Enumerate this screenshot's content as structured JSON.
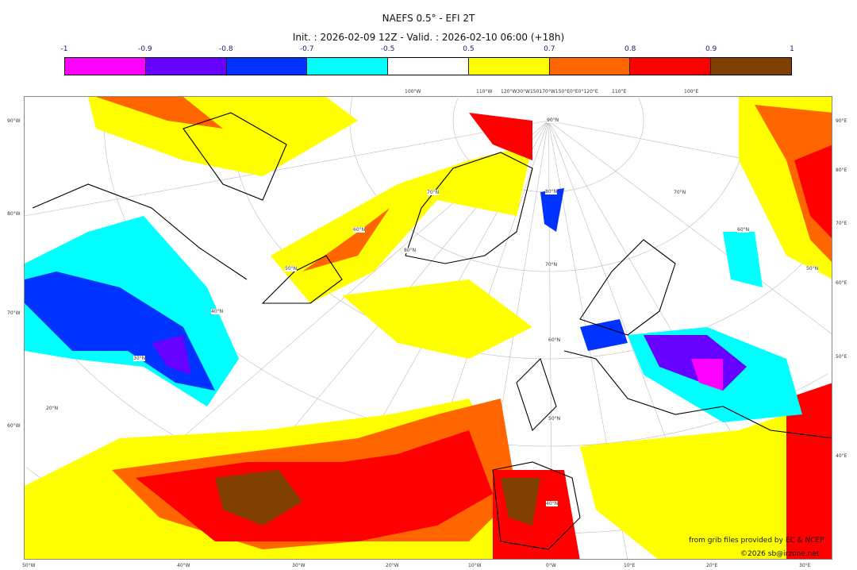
{
  "title": "NAEFS 0.5° - EFI 2T",
  "subtitle": "Init. : 2026-02-09 12Z - Valid. : 2026-02-10 06:00 (+18h)",
  "colorbar": {
    "ticks": [
      "-1",
      "-0.9",
      "-0.8",
      "-0.7",
      "-0.5",
      "0.5",
      "0.7",
      "0.8",
      "0.9",
      "1"
    ],
    "colors": [
      "#ff00ff",
      "#6600ff",
      "#0033ff",
      "#00ffff",
      "#ffffff",
      "#ffff00",
      "#ff6600",
      "#ff0000",
      "#7f3f00"
    ]
  },
  "map": {
    "left_labels": [
      "90°W",
      "80°W",
      "70°W",
      "60°W"
    ],
    "right_labels": [
      "90°E",
      "80°E",
      "70°E",
      "60°E",
      "50°E",
      "40°E"
    ],
    "bottom_labels": [
      "50°W",
      "40°W",
      "30°W",
      "20°W",
      "10°W",
      "0°W",
      "10°E",
      "20°E",
      "30°E"
    ],
    "top_labels": [
      "100°W",
      "110°W",
      "120°W30°W150170°W150°E0°E0°120°E",
      "110°E",
      "100°E"
    ],
    "lat_labels": [
      "90°N",
      "80°N",
      "80°N",
      "70°N",
      "70°N",
      "70°N",
      "60°N",
      "60°N",
      "60°N",
      "50°N",
      "50°N",
      "50°N",
      "40°N",
      "40°N",
      "30°N",
      "20°N"
    ]
  },
  "credits": {
    "source": "from grib files provided by EC & NCEP",
    "copyright": "©2026 sb@irzone.net"
  }
}
